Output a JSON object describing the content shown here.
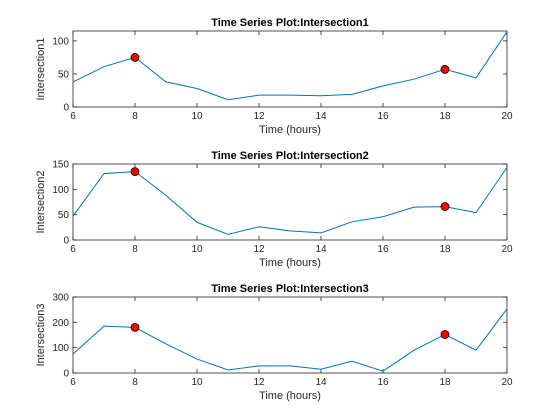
{
  "chart_data": [
    {
      "type": "line",
      "title": "Time Series Plot:Intersection1",
      "xlabel": "Time (hours)",
      "ylabel": "Intersection1",
      "xlim": [
        6,
        20
      ],
      "ylim": [
        0,
        115
      ],
      "xticks": [
        6,
        8,
        10,
        12,
        14,
        16,
        18,
        20
      ],
      "yticks": [
        0,
        50,
        100
      ],
      "x": [
        6,
        7,
        8,
        9,
        10,
        11,
        12,
        13,
        14,
        15,
        16,
        17,
        18,
        19,
        20
      ],
      "y": [
        38,
        61,
        75,
        38,
        28,
        11,
        18,
        18,
        17,
        19,
        32,
        42,
        57,
        44,
        114
      ],
      "markers": [
        {
          "x": 8,
          "y": 75
        },
        {
          "x": 18,
          "y": 57
        }
      ],
      "line_color": "#0072BD",
      "marker_color": "#FF0000"
    },
    {
      "type": "line",
      "title": "Time Series Plot:Intersection2",
      "xlabel": "Time (hours)",
      "ylabel": "Intersection2",
      "xlim": [
        6,
        20
      ],
      "ylim": [
        0,
        150
      ],
      "xticks": [
        6,
        8,
        10,
        12,
        14,
        16,
        18,
        20
      ],
      "yticks": [
        0,
        50,
        100,
        150
      ],
      "x": [
        6,
        7,
        8,
        9,
        10,
        11,
        12,
        13,
        14,
        15,
        16,
        17,
        18,
        19,
        20
      ],
      "y": [
        47,
        131,
        135,
        88,
        35,
        11,
        26,
        18,
        14,
        36,
        46,
        65,
        66,
        54,
        143
      ],
      "markers": [
        {
          "x": 8,
          "y": 135
        },
        {
          "x": 18,
          "y": 66
        }
      ],
      "line_color": "#0072BD",
      "marker_color": "#FF0000"
    },
    {
      "type": "line",
      "title": "Time Series Plot:Intersection3",
      "xlabel": "Time (hours)",
      "ylabel": "Intersection3",
      "xlim": [
        6,
        20
      ],
      "ylim": [
        0,
        300
      ],
      "xticks": [
        6,
        8,
        10,
        12,
        14,
        16,
        18,
        20
      ],
      "yticks": [
        0,
        100,
        200,
        300
      ],
      "x": [
        6,
        7,
        8,
        9,
        10,
        11,
        12,
        13,
        14,
        15,
        16,
        17,
        18,
        19,
        20
      ],
      "y": [
        75,
        185,
        180,
        115,
        55,
        12,
        28,
        28,
        15,
        47,
        7,
        90,
        152,
        90,
        253
      ],
      "markers": [
        {
          "x": 8,
          "y": 180
        },
        {
          "x": 18,
          "y": 152
        }
      ],
      "line_color": "#0072BD",
      "marker_color": "#FF0000"
    }
  ]
}
